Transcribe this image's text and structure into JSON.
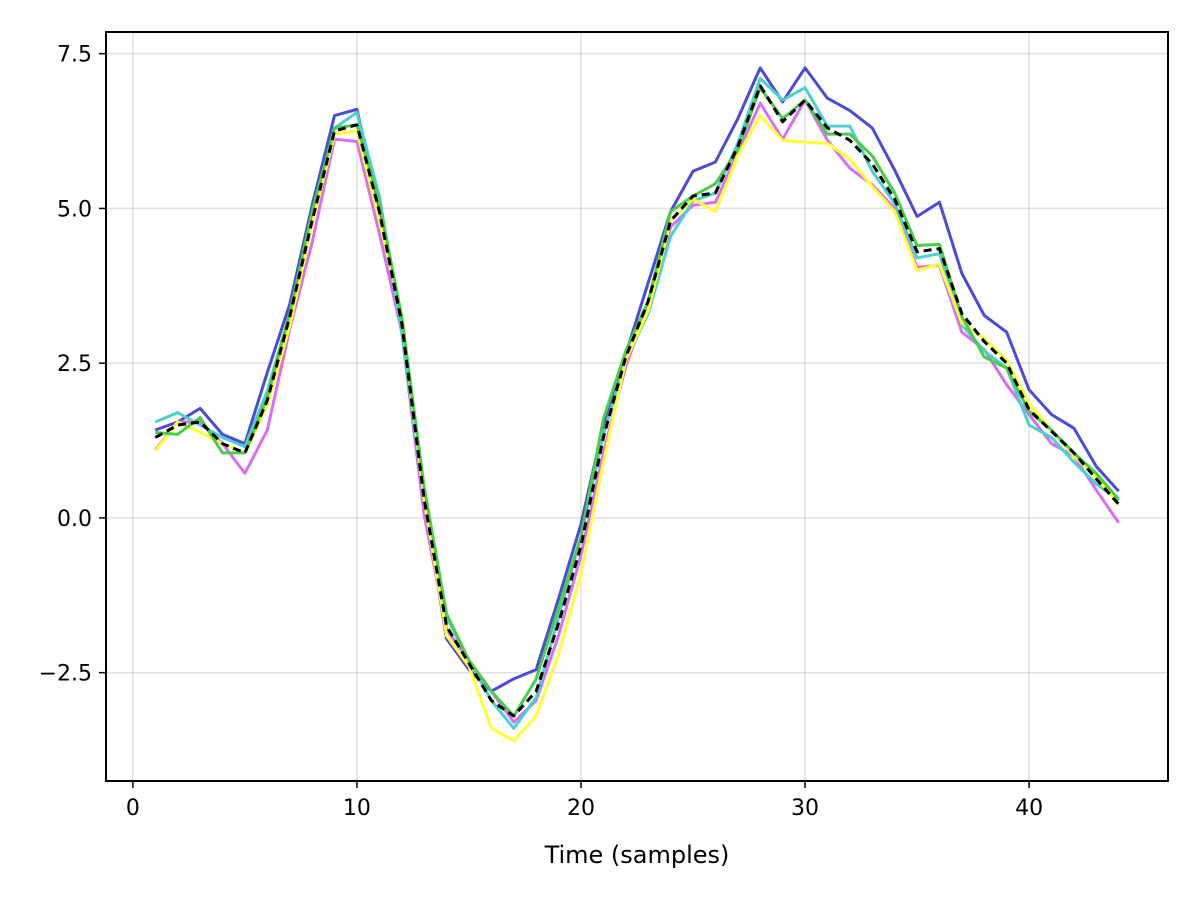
{
  "chart_data": {
    "type": "line",
    "title": "",
    "xlabel": "Time (samples)",
    "ylabel": "",
    "xlim": [
      -1.2,
      46.2
    ],
    "ylim": [
      -4.25,
      7.85
    ],
    "xticks": [
      0,
      10,
      20,
      30,
      40
    ],
    "xtick_labels": [
      "0",
      "10",
      "20",
      "30",
      "40"
    ],
    "yticks": [
      -2.5,
      0.0,
      2.5,
      5.0,
      7.5
    ],
    "ytick_labels": [
      "−2.5",
      "0.0",
      "2.5",
      "5.0",
      "7.5"
    ],
    "grid": true,
    "legend": "none",
    "x": [
      1,
      2,
      3,
      4,
      5,
      6,
      7,
      8,
      9,
      10,
      11,
      12,
      13,
      14,
      15,
      16,
      17,
      18,
      19,
      20,
      21,
      22,
      23,
      24,
      25,
      26,
      27,
      28,
      29,
      30,
      31,
      32,
      33,
      34,
      35,
      36,
      37,
      38,
      39,
      40,
      41,
      42,
      43,
      44
    ],
    "series": [
      {
        "color": "#4b4bd6",
        "dashed": false,
        "values": [
          1.42,
          1.55,
          1.77,
          1.35,
          1.2,
          2.35,
          3.45,
          5.05,
          6.5,
          6.6,
          5.0,
          3.2,
          0.3,
          -1.95,
          -2.45,
          -2.8,
          -2.6,
          -2.45,
          -1.3,
          -0.1,
          1.5,
          2.65,
          3.8,
          4.95,
          5.6,
          5.75,
          6.45,
          7.27,
          6.72,
          7.27,
          6.78,
          6.58,
          6.3,
          5.62,
          4.87,
          5.1,
          3.95,
          3.27,
          3.0,
          2.07,
          1.67,
          1.45,
          0.83,
          0.43
        ]
      },
      {
        "color": "#d96ef5",
        "dashed": false,
        "values": [
          1.1,
          1.55,
          1.55,
          1.2,
          0.72,
          1.42,
          3.05,
          4.45,
          6.12,
          6.08,
          4.6,
          3.0,
          0.05,
          -1.8,
          -2.3,
          -2.8,
          -3.3,
          -2.95,
          -1.9,
          -0.6,
          1.05,
          2.45,
          3.45,
          4.7,
          5.05,
          5.1,
          5.9,
          6.7,
          6.12,
          6.75,
          6.1,
          5.65,
          5.38,
          5.0,
          4.05,
          4.08,
          3.0,
          2.72,
          2.15,
          1.67,
          1.2,
          1.0,
          0.45,
          -0.08
        ]
      },
      {
        "color": "#4bcfcf",
        "dashed": false,
        "values": [
          1.55,
          1.7,
          1.5,
          1.3,
          1.15,
          2.05,
          3.3,
          4.9,
          6.3,
          6.55,
          5.2,
          3.0,
          0.3,
          -1.6,
          -2.3,
          -2.95,
          -3.4,
          -2.9,
          -1.6,
          -0.3,
          1.35,
          2.55,
          3.3,
          4.55,
          5.12,
          5.25,
          6.05,
          7.1,
          6.75,
          6.95,
          6.33,
          6.33,
          5.6,
          5.08,
          4.2,
          4.27,
          3.12,
          2.7,
          2.42,
          1.5,
          1.3,
          0.9,
          0.55,
          0.28
        ]
      },
      {
        "color": "#ffff33",
        "dashed": false,
        "values": [
          1.08,
          1.55,
          1.38,
          1.2,
          1.05,
          1.82,
          3.1,
          4.75,
          6.2,
          6.25,
          4.8,
          3.3,
          0.3,
          -1.9,
          -2.4,
          -3.4,
          -3.6,
          -3.2,
          -2.2,
          -0.9,
          0.9,
          2.55,
          3.35,
          4.8,
          5.15,
          4.95,
          5.85,
          6.5,
          6.1,
          6.07,
          6.05,
          5.8,
          5.35,
          4.95,
          4.0,
          4.1,
          3.15,
          2.9,
          2.55,
          1.85,
          1.42,
          1.0,
          0.65,
          0.22
        ]
      },
      {
        "color": "#4bcc4b",
        "dashed": false,
        "values": [
          1.38,
          1.35,
          1.62,
          1.05,
          1.05,
          1.95,
          3.3,
          4.95,
          6.3,
          6.35,
          5.1,
          3.25,
          0.5,
          -1.55,
          -2.3,
          -2.8,
          -3.2,
          -2.6,
          -1.45,
          -0.3,
          1.6,
          2.7,
          3.5,
          4.95,
          5.2,
          5.4,
          5.95,
          6.95,
          6.45,
          6.75,
          6.2,
          6.2,
          5.85,
          5.25,
          4.4,
          4.42,
          3.25,
          2.6,
          2.42,
          1.72,
          1.42,
          1.05,
          0.72,
          0.3
        ]
      },
      {
        "color": "#000000",
        "dashed": true,
        "values": [
          1.3,
          1.5,
          1.55,
          1.2,
          1.05,
          1.9,
          3.25,
          4.8,
          6.25,
          6.35,
          4.95,
          3.15,
          0.3,
          -1.75,
          -2.35,
          -2.95,
          -3.2,
          -2.8,
          -1.7,
          -0.45,
          1.3,
          2.6,
          3.5,
          4.8,
          5.2,
          5.25,
          6.0,
          6.98,
          6.4,
          6.75,
          6.3,
          6.1,
          5.72,
          5.15,
          4.3,
          4.35,
          3.3,
          2.85,
          2.5,
          1.75,
          1.4,
          1.05,
          0.63,
          0.22
        ]
      }
    ]
  }
}
